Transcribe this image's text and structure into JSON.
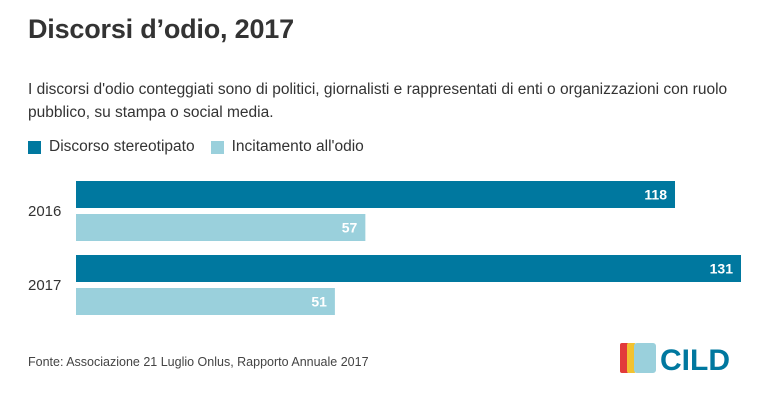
{
  "title": "Discorsi d’odio, 2017",
  "subtitle": "I discorsi d'odio conteggiati sono di politici, giornalisti e rappresentati di enti o organizzazioni con ruolo pubblico, su stampa o social media.",
  "source": "Fonte: Associazione 21 Luglio Onlus, Rapporto Annuale 2017",
  "logo_text": "CILD",
  "colors": {
    "series_1": "#00789f",
    "series_2": "#9ad0dc",
    "logo_red": "#e23b3b",
    "logo_yellow": "#f2c230",
    "logo_blue": "#00789f"
  },
  "chart_data": {
    "type": "bar",
    "orientation": "horizontal",
    "categories": [
      "2016",
      "2017"
    ],
    "series": [
      {
        "name": "Discorso stereotipato",
        "values": [
          118,
          131
        ]
      },
      {
        "name": "Incitamento all'odio",
        "values": [
          57,
          51
        ]
      }
    ],
    "xlim": [
      0,
      131
    ],
    "grid": false,
    "legend": "top-left",
    "data_labels": true
  }
}
